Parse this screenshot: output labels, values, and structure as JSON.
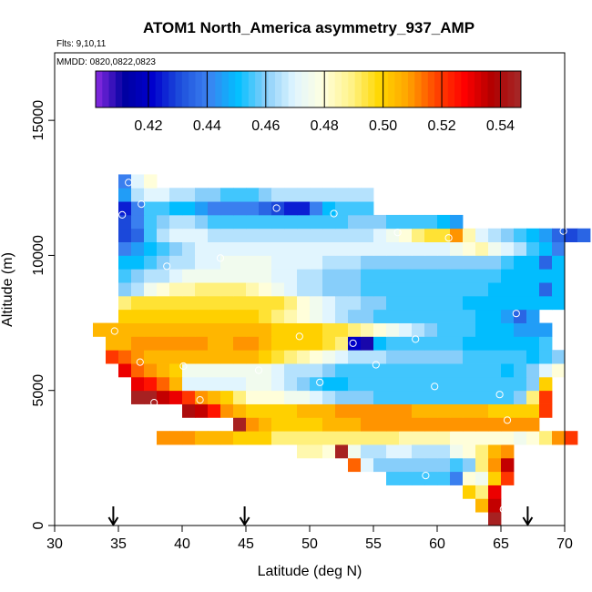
{
  "chart_data": {
    "type": "heatmap",
    "title": "ATOM1 North_America asymmetry_937_AMP",
    "flights_label": "Flts: 9,10,11",
    "dates_label": "MMDD: 0820,0822,0823",
    "xlabel": "Latitude (deg N)",
    "ylabel": "Altitude (m)",
    "xlim": [
      30,
      70
    ],
    "ylim": [
      0,
      17500
    ],
    "xticks": [
      30,
      35,
      40,
      45,
      50,
      55,
      60,
      65,
      70
    ],
    "yticks": [
      0,
      5000,
      10000,
      15000
    ],
    "colorbar": {
      "min": 0.402,
      "max": 0.547,
      "ticks": [
        0.42,
        0.44,
        0.46,
        0.48,
        0.5,
        0.52,
        0.54
      ],
      "tick_labels": [
        "0.42",
        "0.44",
        "0.46",
        "0.48",
        "0.50",
        "0.52",
        "0.54"
      ],
      "palette": [
        "#8a2be2",
        "#0000a0",
        "#0000cd",
        "#1e50dc",
        "#3c82f0",
        "#00bfff",
        "#87cefa",
        "#e0f5ff",
        "#ffffe0",
        "#fff38a",
        "#ffd700",
        "#ffa500",
        "#ff4500",
        "#ff0000",
        "#b00000",
        "#a52a2a"
      ]
    },
    "grid_steps": {
      "dx": 1.0,
      "dy": 500
    },
    "rows": [
      {
        "y": 250,
        "x0": 64.5,
        "values": [
          0.545
        ]
      },
      {
        "y": 750,
        "x0": 63.5,
        "values": [
          0.505,
          0.535
        ]
      },
      {
        "y": 1250,
        "x0": 62.5,
        "values": [
          0.5,
          0.49,
          0.53
        ]
      },
      {
        "y": 1750,
        "x0": 56.5,
        "values": [
          0.455,
          0.455,
          0.455,
          0.455,
          0.455,
          0.44,
          0.48,
          0.475,
          0.5,
          0.52
        ]
      },
      {
        "y": 2250,
        "x0": 53.5,
        "values": [
          0.515,
          0.47,
          0.46,
          0.46,
          0.46,
          0.46,
          0.46,
          0.46,
          0.455,
          0.46,
          0.49,
          0.51,
          0.535
        ]
      },
      {
        "y": 2750,
        "x0": 49.5,
        "values": [
          0.485,
          0.485,
          0.48,
          0.545,
          0.475,
          0.465,
          0.465,
          0.47,
          0.47,
          0.465,
          0.465,
          0.465,
          0.475,
          0.48,
          0.49,
          0.505,
          0.51
        ]
      },
      {
        "y": 3250,
        "x0": 38.5,
        "values": [
          0.51,
          0.51,
          0.51,
          0.505,
          0.505,
          0.505,
          0.5,
          0.5,
          0.5,
          0.49,
          0.49,
          0.49,
          0.49,
          0.49,
          0.49,
          0.49,
          0.49,
          0.49,
          0.49,
          0.485,
          0.485,
          0.485,
          0.485,
          0.48,
          0.48,
          0.48,
          0.48,
          0.48,
          0.475,
          0.48,
          0.49,
          0.51,
          0.52
        ]
      },
      {
        "y": 3750,
        "x0": 44.5,
        "values": [
          0.545,
          0.51,
          0.505,
          0.5,
          0.5,
          0.5,
          0.5,
          0.505,
          0.505,
          0.505,
          0.51,
          0.51,
          0.51,
          0.51,
          0.51,
          0.51,
          0.51,
          0.51,
          0.51,
          0.51,
          0.51,
          0.51,
          0.51,
          0.51
        ]
      },
      {
        "y": 4250,
        "x0": 40.5,
        "values": [
          0.54,
          0.535,
          0.525,
          0.51,
          0.505,
          0.5,
          0.5,
          0.5,
          0.5,
          0.505,
          0.505,
          0.505,
          0.51,
          0.51,
          0.51,
          0.51,
          0.51,
          0.51,
          0.505,
          0.505,
          0.505,
          0.505,
          0.505,
          0.505,
          0.5,
          0.5,
          0.5,
          0.5,
          0.52
        ]
      },
      {
        "y": 4750,
        "x0": 36.5,
        "values": [
          0.545,
          0.545,
          0.535,
          0.53,
          0.52,
          0.51,
          0.505,
          0.5,
          0.49,
          0.48,
          0.48,
          0.48,
          0.475,
          0.475,
          0.47,
          0.465,
          0.46,
          0.46,
          0.46,
          0.455,
          0.455,
          0.455,
          0.455,
          0.455,
          0.455,
          0.455,
          0.455,
          0.455,
          0.455,
          0.455,
          0.46,
          0.49,
          0.52
        ]
      },
      {
        "y": 5250,
        "x0": 36.5,
        "values": [
          0.53,
          0.525,
          0.515,
          0.505,
          0.47,
          0.47,
          0.47,
          0.47,
          0.47,
          0.475,
          0.475,
          0.47,
          0.465,
          0.46,
          0.455,
          0.45,
          0.45,
          0.455,
          0.455,
          0.455,
          0.455,
          0.455,
          0.455,
          0.455,
          0.455,
          0.455,
          0.455,
          0.455,
          0.455,
          0.455,
          0.455,
          0.46,
          0.5
        ]
      },
      {
        "y": 5750,
        "x0": 35.5,
        "values": [
          0.53,
          0.515,
          0.51,
          0.505,
          0.5,
          0.475,
          0.475,
          0.475,
          0.475,
          0.475,
          0.475,
          0.475,
          0.47,
          0.465,
          0.465,
          0.465,
          0.46,
          0.455,
          0.455,
          0.455,
          0.455,
          0.455,
          0.455,
          0.455,
          0.455,
          0.455,
          0.455,
          0.455,
          0.455,
          0.455,
          0.45,
          0.455,
          0.46,
          0.47,
          0.48
        ]
      },
      {
        "y": 6250,
        "x0": 34.5,
        "values": [
          0.52,
          0.515,
          0.51,
          0.505,
          0.505,
          0.505,
          0.505,
          0.505,
          0.505,
          0.505,
          0.505,
          0.505,
          0.5,
          0.495,
          0.49,
          0.485,
          0.48,
          0.475,
          0.47,
          0.465,
          0.465,
          0.465,
          0.46,
          0.46,
          0.46,
          0.46,
          0.46,
          0.46,
          0.455,
          0.455,
          0.455,
          0.455,
          0.455,
          0.45,
          0.455,
          0.46
        ]
      },
      {
        "y": 6750,
        "x0": 34.5,
        "values": [
          0.505,
          0.505,
          0.51,
          0.51,
          0.51,
          0.51,
          0.51,
          0.51,
          0.505,
          0.505,
          0.51,
          0.51,
          0.505,
          0.5,
          0.5,
          0.5,
          0.5,
          0.495,
          0.49,
          0.42,
          0.41,
          0.45,
          0.455,
          0.455,
          0.455,
          0.455,
          0.455,
          0.455,
          0.45,
          0.45,
          0.45,
          0.45,
          0.45,
          0.45,
          0.455
        ]
      },
      {
        "y": 7250,
        "x0": 33.5,
        "values": [
          0.505,
          0.505,
          0.505,
          0.505,
          0.505,
          0.505,
          0.505,
          0.505,
          0.505,
          0.505,
          0.505,
          0.505,
          0.505,
          0.505,
          0.5,
          0.5,
          0.5,
          0.5,
          0.495,
          0.495,
          0.49,
          0.485,
          0.48,
          0.475,
          0.47,
          0.465,
          0.46,
          0.455,
          0.455,
          0.455,
          0.45,
          0.45,
          0.45,
          0.445,
          0.445,
          0.445
        ]
      },
      {
        "y": 7750,
        "x0": 35.5,
        "values": [
          0.5,
          0.5,
          0.5,
          0.5,
          0.5,
          0.5,
          0.5,
          0.5,
          0.5,
          0.5,
          0.5,
          0.495,
          0.49,
          0.485,
          0.48,
          0.475,
          0.47,
          0.465,
          0.46,
          0.46,
          0.455,
          0.455,
          0.455,
          0.455,
          0.455,
          0.455,
          0.455,
          0.455,
          0.45,
          0.45,
          0.445,
          0.435,
          0.445
        ]
      },
      {
        "y": 8250,
        "x0": 35.5,
        "values": [
          0.49,
          0.495,
          0.495,
          0.495,
          0.495,
          0.495,
          0.495,
          0.495,
          0.495,
          0.495,
          0.495,
          0.495,
          0.495,
          0.49,
          0.48,
          0.475,
          0.47,
          0.465,
          0.465,
          0.46,
          0.46,
          0.455,
          0.455,
          0.455,
          0.455,
          0.455,
          0.455,
          0.45,
          0.45,
          0.45,
          0.45,
          0.45,
          0.45,
          0.45,
          0.45
        ]
      },
      {
        "y": 8750,
        "x0": 35.5,
        "values": [
          0.46,
          0.465,
          0.475,
          0.48,
          0.485,
          0.485,
          0.49,
          0.49,
          0.49,
          0.49,
          0.485,
          0.48,
          0.475,
          0.47,
          0.465,
          0.465,
          0.46,
          0.46,
          0.46,
          0.455,
          0.455,
          0.455,
          0.455,
          0.455,
          0.455,
          0.455,
          0.455,
          0.455,
          0.455,
          0.45,
          0.45,
          0.45,
          0.45,
          0.435,
          0.45
        ]
      },
      {
        "y": 9250,
        "x0": 35.5,
        "values": [
          0.455,
          0.46,
          0.465,
          0.465,
          0.47,
          0.475,
          0.475,
          0.475,
          0.475,
          0.475,
          0.475,
          0.475,
          0.47,
          0.47,
          0.465,
          0.465,
          0.46,
          0.46,
          0.46,
          0.455,
          0.455,
          0.455,
          0.455,
          0.455,
          0.455,
          0.455,
          0.455,
          0.455,
          0.455,
          0.455,
          0.45,
          0.45,
          0.45,
          0.45,
          0.45
        ]
      },
      {
        "y": 9750,
        "x0": 35.5,
        "values": [
          0.45,
          0.45,
          0.455,
          0.46,
          0.465,
          0.465,
          0.47,
          0.47,
          0.475,
          0.475,
          0.475,
          0.475,
          0.47,
          0.47,
          0.47,
          0.47,
          0.465,
          0.465,
          0.465,
          0.46,
          0.46,
          0.46,
          0.46,
          0.46,
          0.46,
          0.46,
          0.46,
          0.46,
          0.46,
          0.46,
          0.455,
          0.45,
          0.45,
          0.435,
          0.45
        ]
      },
      {
        "y": 10250,
        "x0": 35.5,
        "values": [
          0.44,
          0.445,
          0.45,
          0.455,
          0.46,
          0.465,
          0.47,
          0.47,
          0.47,
          0.47,
          0.47,
          0.47,
          0.47,
          0.47,
          0.47,
          0.47,
          0.47,
          0.47,
          0.47,
          0.47,
          0.47,
          0.47,
          0.47,
          0.47,
          0.47,
          0.47,
          0.475,
          0.48,
          0.485,
          0.475,
          0.47,
          0.465,
          0.455,
          0.45,
          0.44
        ]
      },
      {
        "y": 10750,
        "x0": 35.5,
        "values": [
          0.43,
          0.435,
          0.455,
          0.465,
          0.47,
          0.47,
          0.47,
          0.465,
          0.465,
          0.465,
          0.465,
          0.465,
          0.465,
          0.465,
          0.465,
          0.465,
          0.465,
          0.465,
          0.465,
          0.465,
          0.47,
          0.475,
          0.48,
          0.49,
          0.495,
          0.495,
          0.51,
          0.485,
          0.47,
          0.465,
          0.46,
          0.455,
          0.45,
          0.445,
          0.435,
          0.43,
          0.435
        ]
      },
      {
        "y": 11250,
        "x0": 35.5,
        "values": [
          0.43,
          0.44,
          0.455,
          0.46,
          0.465,
          0.465,
          0.46,
          0.455,
          0.455,
          0.455,
          0.455,
          0.455,
          0.455,
          0.455,
          0.455,
          0.455,
          0.455,
          0.455,
          0.46,
          0.46,
          0.46,
          0.455,
          0.455,
          0.455,
          0.455,
          0.45,
          0.445
        ]
      },
      {
        "y": 11750,
        "x0": 35.5,
        "values": [
          0.425,
          0.44,
          0.455,
          0.455,
          0.45,
          0.45,
          0.445,
          0.44,
          0.44,
          0.44,
          0.44,
          0.435,
          0.43,
          0.425,
          0.425,
          0.44,
          0.45,
          0.455,
          0.455,
          0.455
        ]
      },
      {
        "y": 12250,
        "x0": 35.5,
        "values": [
          0.445,
          0.465,
          0.47,
          0.47,
          0.465,
          0.465,
          0.46,
          0.46,
          0.455,
          0.455,
          0.455,
          0.46,
          0.465,
          0.465,
          0.465,
          0.465,
          0.465,
          0.465,
          0.465,
          0.465
        ]
      },
      {
        "y": 12750,
        "x0": 35.5,
        "values": [
          0.44,
          0.47,
          0.48
        ]
      }
    ],
    "sample_points": [
      {
        "lat": 35.8,
        "alt": 12700
      },
      {
        "lat": 36.8,
        "alt": 11900
      },
      {
        "lat": 35.3,
        "alt": 11500
      },
      {
        "lat": 47.4,
        "alt": 11750
      },
      {
        "lat": 51.9,
        "alt": 11550
      },
      {
        "lat": 56.9,
        "alt": 10850
      },
      {
        "lat": 60.9,
        "alt": 10650
      },
      {
        "lat": 69.9,
        "alt": 10900
      },
      {
        "lat": 38.8,
        "alt": 9600
      },
      {
        "lat": 43.0,
        "alt": 9900
      },
      {
        "lat": 66.2,
        "alt": 7850
      },
      {
        "lat": 34.7,
        "alt": 7200
      },
      {
        "lat": 49.2,
        "alt": 7000
      },
      {
        "lat": 53.4,
        "alt": 6750
      },
      {
        "lat": 58.3,
        "alt": 6900
      },
      {
        "lat": 36.7,
        "alt": 6050
      },
      {
        "lat": 40.1,
        "alt": 5900
      },
      {
        "lat": 46.0,
        "alt": 5750
      },
      {
        "lat": 55.2,
        "alt": 5950
      },
      {
        "lat": 50.8,
        "alt": 5300
      },
      {
        "lat": 59.8,
        "alt": 5150
      },
      {
        "lat": 37.8,
        "alt": 4550
      },
      {
        "lat": 41.4,
        "alt": 4650
      },
      {
        "lat": 64.9,
        "alt": 4850
      },
      {
        "lat": 65.5,
        "alt": 3900
      },
      {
        "lat": 59.1,
        "alt": 1850
      },
      {
        "lat": 65.2,
        "alt": 600
      }
    ],
    "flight_markers_lat": [
      34.6,
      44.9,
      67.1
    ]
  }
}
